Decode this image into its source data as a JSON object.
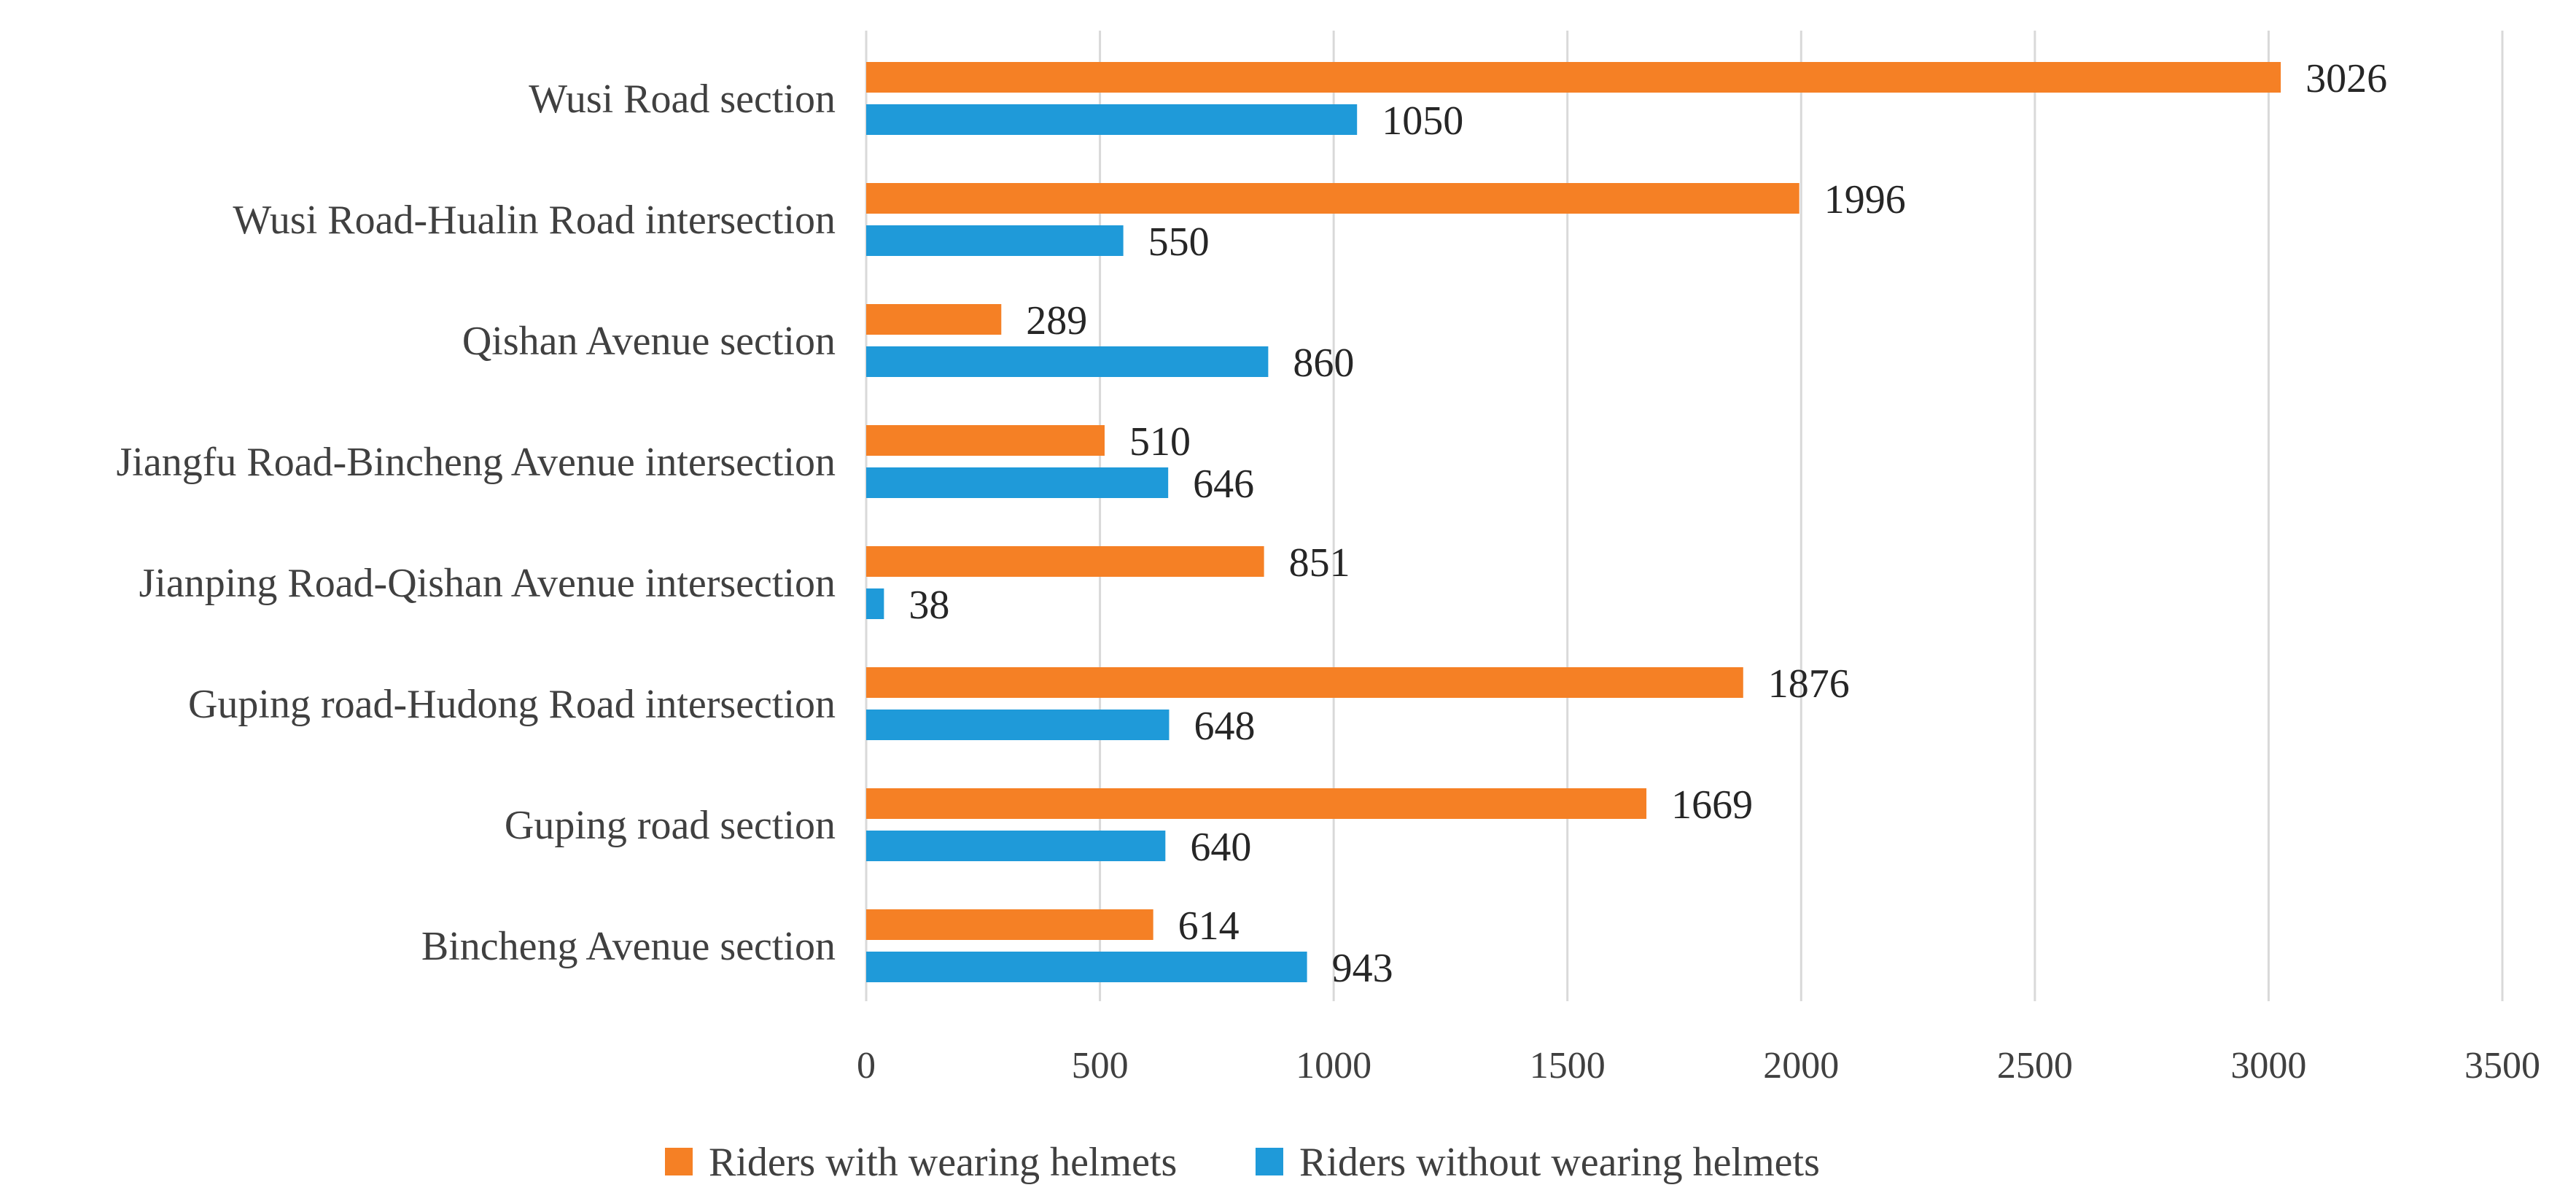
{
  "chart_data": {
    "type": "bar",
    "orientation": "horizontal",
    "title": "",
    "xlabel": "",
    "ylabel": "",
    "xlim": [
      0,
      3500
    ],
    "ticks": [
      "0",
      "500",
      "1000",
      "1500",
      "2000",
      "2500",
      "3000",
      "3500"
    ],
    "tick_values": [
      0,
      500,
      1000,
      1500,
      2000,
      2500,
      3000,
      3500
    ],
    "grid": true,
    "legend_position": "bottom",
    "categories": [
      "Wusi Road section",
      "Wusi Road-Hualin Road intersection",
      "Qishan Avenue section",
      "Jiangfu Road-Bincheng Avenue intersection",
      "Jianping Road-Qishan Avenue intersection",
      "Guping road-Hudong Road intersection",
      "Guping road section",
      "Bincheng Avenue section"
    ],
    "series": [
      {
        "name": "Riders with wearing helmets",
        "color": "#f58025",
        "values": [
          3026,
          1996,
          289,
          510,
          851,
          1876,
          1669,
          614
        ],
        "labels": [
          "3026",
          "1996",
          "289",
          "510",
          "851",
          "1876",
          "1669",
          "614"
        ]
      },
      {
        "name": "Riders without wearing helmets",
        "color": "#1f9ad9",
        "values": [
          1050,
          550,
          860,
          646,
          38,
          648,
          640,
          943
        ],
        "labels": [
          "1050",
          "550",
          "860",
          "646",
          "38",
          "648",
          "640",
          "943"
        ]
      }
    ]
  }
}
